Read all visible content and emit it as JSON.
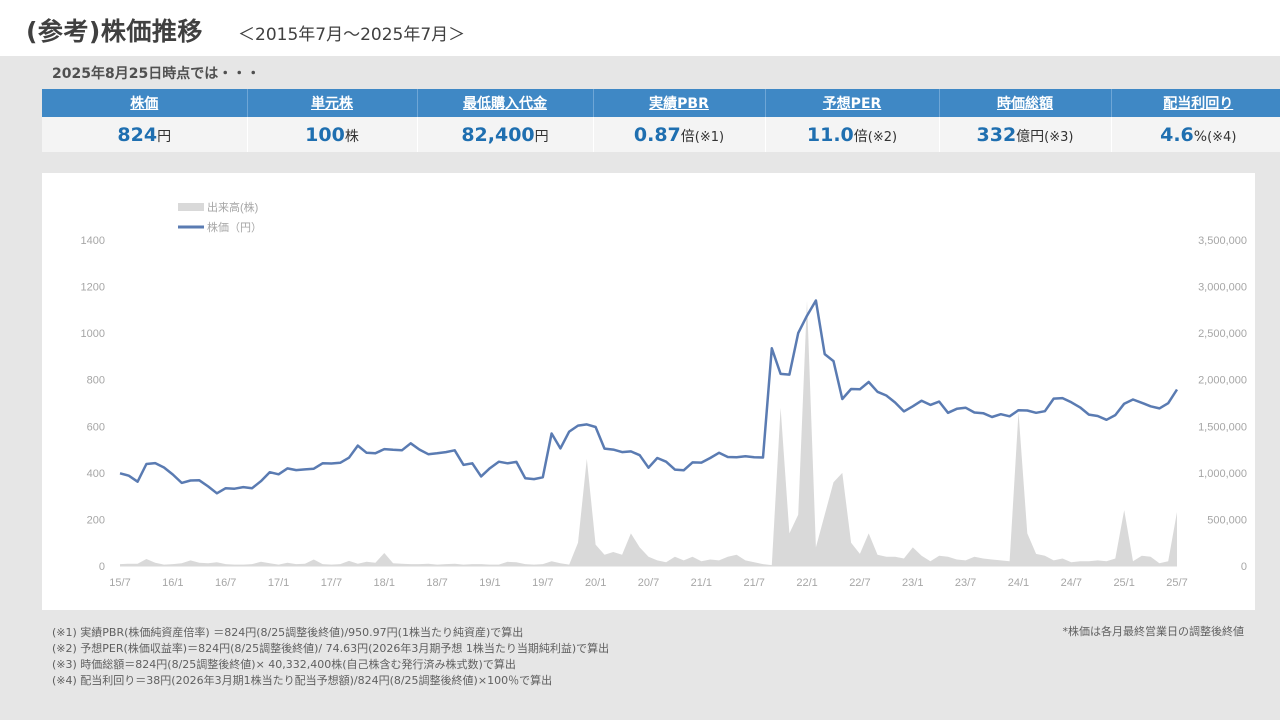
{
  "header": {
    "title": "(参考)株価推移",
    "subtitle": "＜2015年7月～2025年7月＞"
  },
  "as_of": "2025年8月25日時点では・・・",
  "metrics": [
    {
      "label": "株価",
      "value": "824",
      "unit": "円",
      "note": ""
    },
    {
      "label": "単元株",
      "value": "100",
      "unit": "株",
      "note": ""
    },
    {
      "label": "最低購入代金",
      "value": "82,400",
      "unit": "円",
      "note": ""
    },
    {
      "label": "実績PBR",
      "value": "0.87",
      "unit": "倍",
      "note": "(※1)"
    },
    {
      "label": "予想PER",
      "value": "11.0",
      "unit": "倍",
      "note": "(※2)"
    },
    {
      "label": "時価総額",
      "value": "332",
      "unit": "億円",
      "note": "(※3)"
    },
    {
      "label": "配当利回り",
      "value": "4.6",
      "unit": "%",
      "note": "(※4)"
    }
  ],
  "chart_data": {
    "type": "line",
    "legend": [
      {
        "name": "出来高(株)",
        "kind": "area",
        "color": "#d9d9d9"
      },
      {
        "name": "株価（円）",
        "kind": "line",
        "color": "#5a7bb2"
      }
    ],
    "legend_position": "top-left",
    "x_ticks": [
      "15/7",
      "16/1",
      "16/7",
      "17/1",
      "17/7",
      "18/1",
      "18/7",
      "19/1",
      "19/7",
      "20/1",
      "20/7",
      "21/1",
      "21/7",
      "22/1",
      "22/7",
      "23/1",
      "23/7",
      "24/1",
      "24/7",
      "25/1",
      "25/7"
    ],
    "y_left": {
      "ticks": [
        "0",
        "200",
        "400",
        "600",
        "800",
        "1000",
        "1200",
        "1400"
      ],
      "min": 0,
      "max": 1400
    },
    "y_right": {
      "ticks": [
        "0",
        "500,000",
        "1,000,000",
        "1,500,000",
        "2,000,000",
        "2,500,000",
        "3,000,000",
        "3,500,000"
      ],
      "min": 0,
      "max": 3500000
    },
    "grid": false,
    "series": [
      {
        "name": "株価（円）",
        "axis": "left",
        "values": [
          398,
          388,
          362,
          438,
          442,
          423,
          393,
          357,
          367,
          368,
          342,
          312,
          334,
          332,
          339,
          334,
          364,
          403,
          394,
          419,
          412,
          415,
          418,
          441,
          440,
          443,
          465,
          517,
          486,
          484,
          502,
          499,
          497,
          527,
          500,
          480,
          484,
          489,
          497,
          434,
          441,
          385,
          420,
          448,
          441,
          447,
          377,
          373,
          381,
          569,
          505,
          577,
          603,
          608,
          597,
          504,
          500,
          489,
          492,
          476,
          422,
          464,
          448,
          414,
          411,
          445,
          444,
          464,
          486,
          468,
          467,
          471,
          467,
          466,
          935,
          825,
          822,
          1000,
          1075,
          1140,
          910,
          880,
          717,
          760,
          759,
          790,
          748,
          732,
          702,
          664,
          686,
          710,
          692,
          706,
          658,
          675,
          680,
          659,
          656,
          640,
          652,
          643,
          669,
          668,
          658,
          665,
          719,
          721,
          703,
          681,
          650,
          644,
          628,
          648,
          697,
          715,
          701,
          686,
          677,
          699,
          758
        ]
      },
      {
        "name": "出来高(株)",
        "axis": "right",
        "values": [
          20000,
          25000,
          25000,
          75000,
          35000,
          15000,
          20000,
          30000,
          60000,
          35000,
          30000,
          40000,
          20000,
          15000,
          15000,
          20000,
          45000,
          30000,
          15000,
          35000,
          20000,
          25000,
          70000,
          20000,
          15000,
          20000,
          55000,
          25000,
          45000,
          35000,
          140000,
          30000,
          25000,
          20000,
          20000,
          25000,
          15000,
          20000,
          25000,
          15000,
          20000,
          20000,
          15000,
          15000,
          45000,
          40000,
          20000,
          15000,
          20000,
          50000,
          30000,
          15000,
          250000,
          1150000,
          230000,
          120000,
          150000,
          120000,
          350000,
          200000,
          100000,
          60000,
          40000,
          100000,
          60000,
          100000,
          50000,
          70000,
          60000,
          100000,
          120000,
          60000,
          40000,
          20000,
          10000,
          1700000,
          350000,
          550000,
          2850000,
          200000,
          550000,
          900000,
          1000000,
          250000,
          130000,
          350000,
          120000,
          100000,
          100000,
          80000,
          200000,
          110000,
          50000,
          110000,
          100000,
          70000,
          60000,
          100000,
          80000,
          70000,
          60000,
          50000,
          1650000,
          350000,
          130000,
          110000,
          60000,
          80000,
          40000,
          50000,
          50000,
          60000,
          50000,
          80000,
          600000,
          50000,
          110000,
          100000,
          30000,
          50000,
          580000
        ]
      }
    ]
  },
  "footnotes": [
    "(※1) 実績PBR(株価純資産倍率) ＝824円(8/25調整後終値)/950.97円(1株当たり純資産)で算出",
    "(※2) 予想PER(株価収益率)＝824円(8/25調整後終値)/ 74.63円(2026年3月期予想 1株当たり当期純利益)で算出",
    "(※3) 時価総額＝824円(8/25調整後終値)× 40,332,400株(自己株含む発行済み株式数)で算出",
    "(※4) 配当利回り＝38円(2026年3月期1株当たり配当予想額)/824円(8/25調整後終値)×100％で算出"
  ],
  "right_note": "*株価は各月最終営業日の調整後終値",
  "colors": {
    "accent": "#3f88c5",
    "value_text": "#1f6fb0",
    "price_line": "#5a7bb2",
    "volume_area": "#d9d9d9"
  }
}
